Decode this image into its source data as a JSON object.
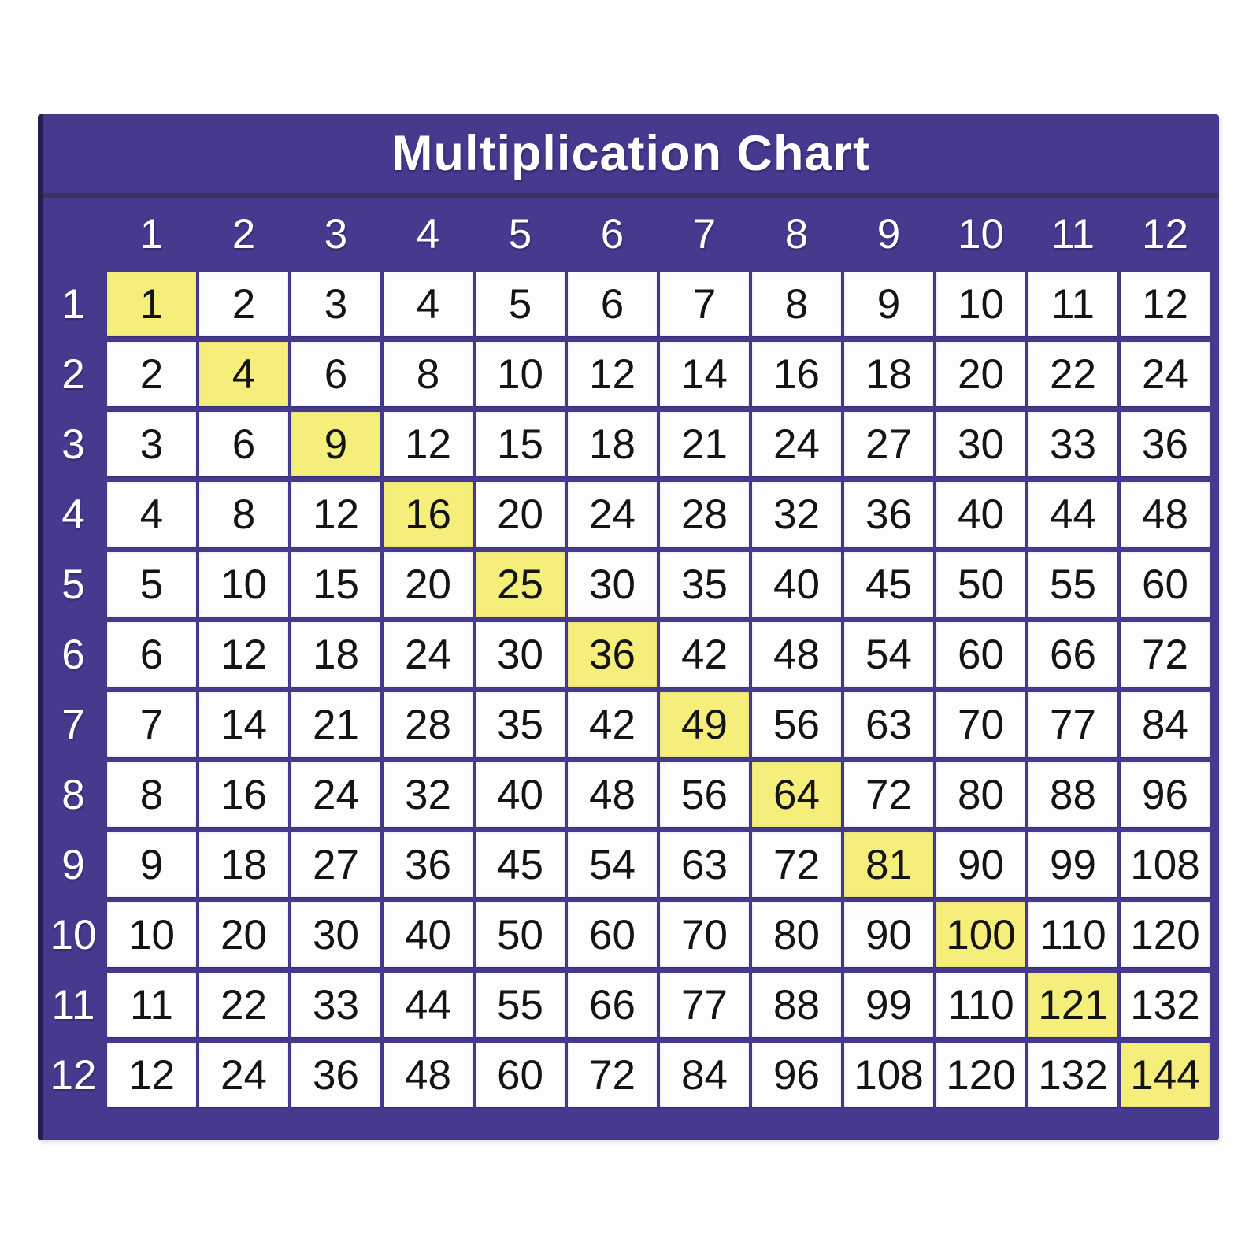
{
  "title": "Multiplication Chart",
  "colors": {
    "purple": "#453a8e",
    "purple_edge": "#241e4c",
    "divider_line": "#3a3360",
    "highlight_yellow": "#f6ee7b",
    "cell_background": "#fdfdfe",
    "cell_text": "#141414",
    "header_text": "#ffffff"
  },
  "chart_data": {
    "type": "table",
    "title": "Multiplication Chart",
    "col_headers": [
      "1",
      "2",
      "3",
      "4",
      "5",
      "6",
      "7",
      "8",
      "9",
      "10",
      "11",
      "12"
    ],
    "rows": [
      {
        "header": "1",
        "values": [
          1,
          2,
          3,
          4,
          5,
          6,
          7,
          8,
          9,
          10,
          11,
          12
        ]
      },
      {
        "header": "2",
        "values": [
          2,
          4,
          6,
          8,
          10,
          12,
          14,
          16,
          18,
          20,
          22,
          24
        ]
      },
      {
        "header": "3",
        "values": [
          3,
          6,
          9,
          12,
          15,
          18,
          21,
          24,
          27,
          30,
          33,
          36
        ]
      },
      {
        "header": "4",
        "values": [
          4,
          8,
          12,
          16,
          20,
          24,
          28,
          32,
          36,
          40,
          44,
          48
        ]
      },
      {
        "header": "5",
        "values": [
          5,
          10,
          15,
          20,
          25,
          30,
          35,
          40,
          45,
          50,
          55,
          60
        ]
      },
      {
        "header": "6",
        "values": [
          6,
          12,
          18,
          24,
          30,
          36,
          42,
          48,
          54,
          60,
          66,
          72
        ]
      },
      {
        "header": "7",
        "values": [
          7,
          14,
          21,
          28,
          35,
          42,
          49,
          56,
          63,
          70,
          77,
          84
        ]
      },
      {
        "header": "8",
        "values": [
          8,
          16,
          24,
          32,
          40,
          48,
          56,
          64,
          72,
          80,
          88,
          96
        ]
      },
      {
        "header": "9",
        "values": [
          9,
          18,
          27,
          36,
          45,
          54,
          63,
          72,
          81,
          90,
          99,
          108
        ]
      },
      {
        "header": "10",
        "values": [
          10,
          20,
          30,
          40,
          50,
          60,
          70,
          80,
          90,
          100,
          110,
          120
        ]
      },
      {
        "header": "11",
        "values": [
          11,
          22,
          33,
          44,
          55,
          66,
          77,
          88,
          99,
          110,
          121,
          132
        ]
      },
      {
        "header": "12",
        "values": [
          12,
          24,
          36,
          48,
          60,
          72,
          84,
          96,
          108,
          120,
          132,
          144
        ]
      }
    ],
    "highlight_rule": "diagonal perfect squares highlighted yellow",
    "highlighted_values": [
      1,
      4,
      9,
      16,
      25,
      36,
      49,
      64,
      81,
      100,
      121,
      144
    ],
    "layout_hints": {
      "header_position": "top row and left column on purple background",
      "grid_lines": "purple gaps between white cells"
    }
  }
}
